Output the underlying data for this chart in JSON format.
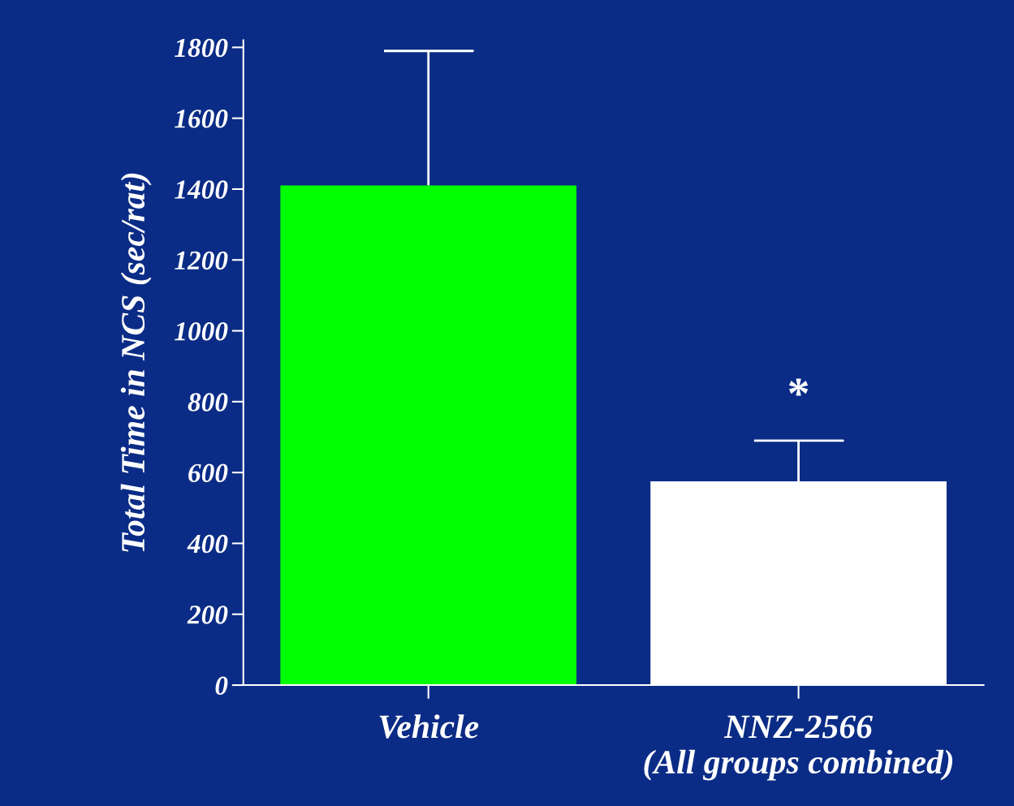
{
  "chart_data": {
    "type": "bar",
    "ylabel": "Total Time in NCS (sec/rat)",
    "categories": [
      "Vehicle",
      "NNZ-2566\n(All groups combined)"
    ],
    "values": [
      1410,
      575
    ],
    "colors": [
      "#00ff00",
      "#ffffff"
    ],
    "errors": [
      [
        1410,
        1790
      ],
      [
        575,
        690
      ]
    ],
    "ylim": [
      0,
      1820
    ],
    "yticks": [
      0,
      200,
      400,
      600,
      800,
      1000,
      1200,
      1400,
      1600,
      1800
    ],
    "annotations": [
      "*"
    ],
    "grid": false,
    "legend": false
  }
}
